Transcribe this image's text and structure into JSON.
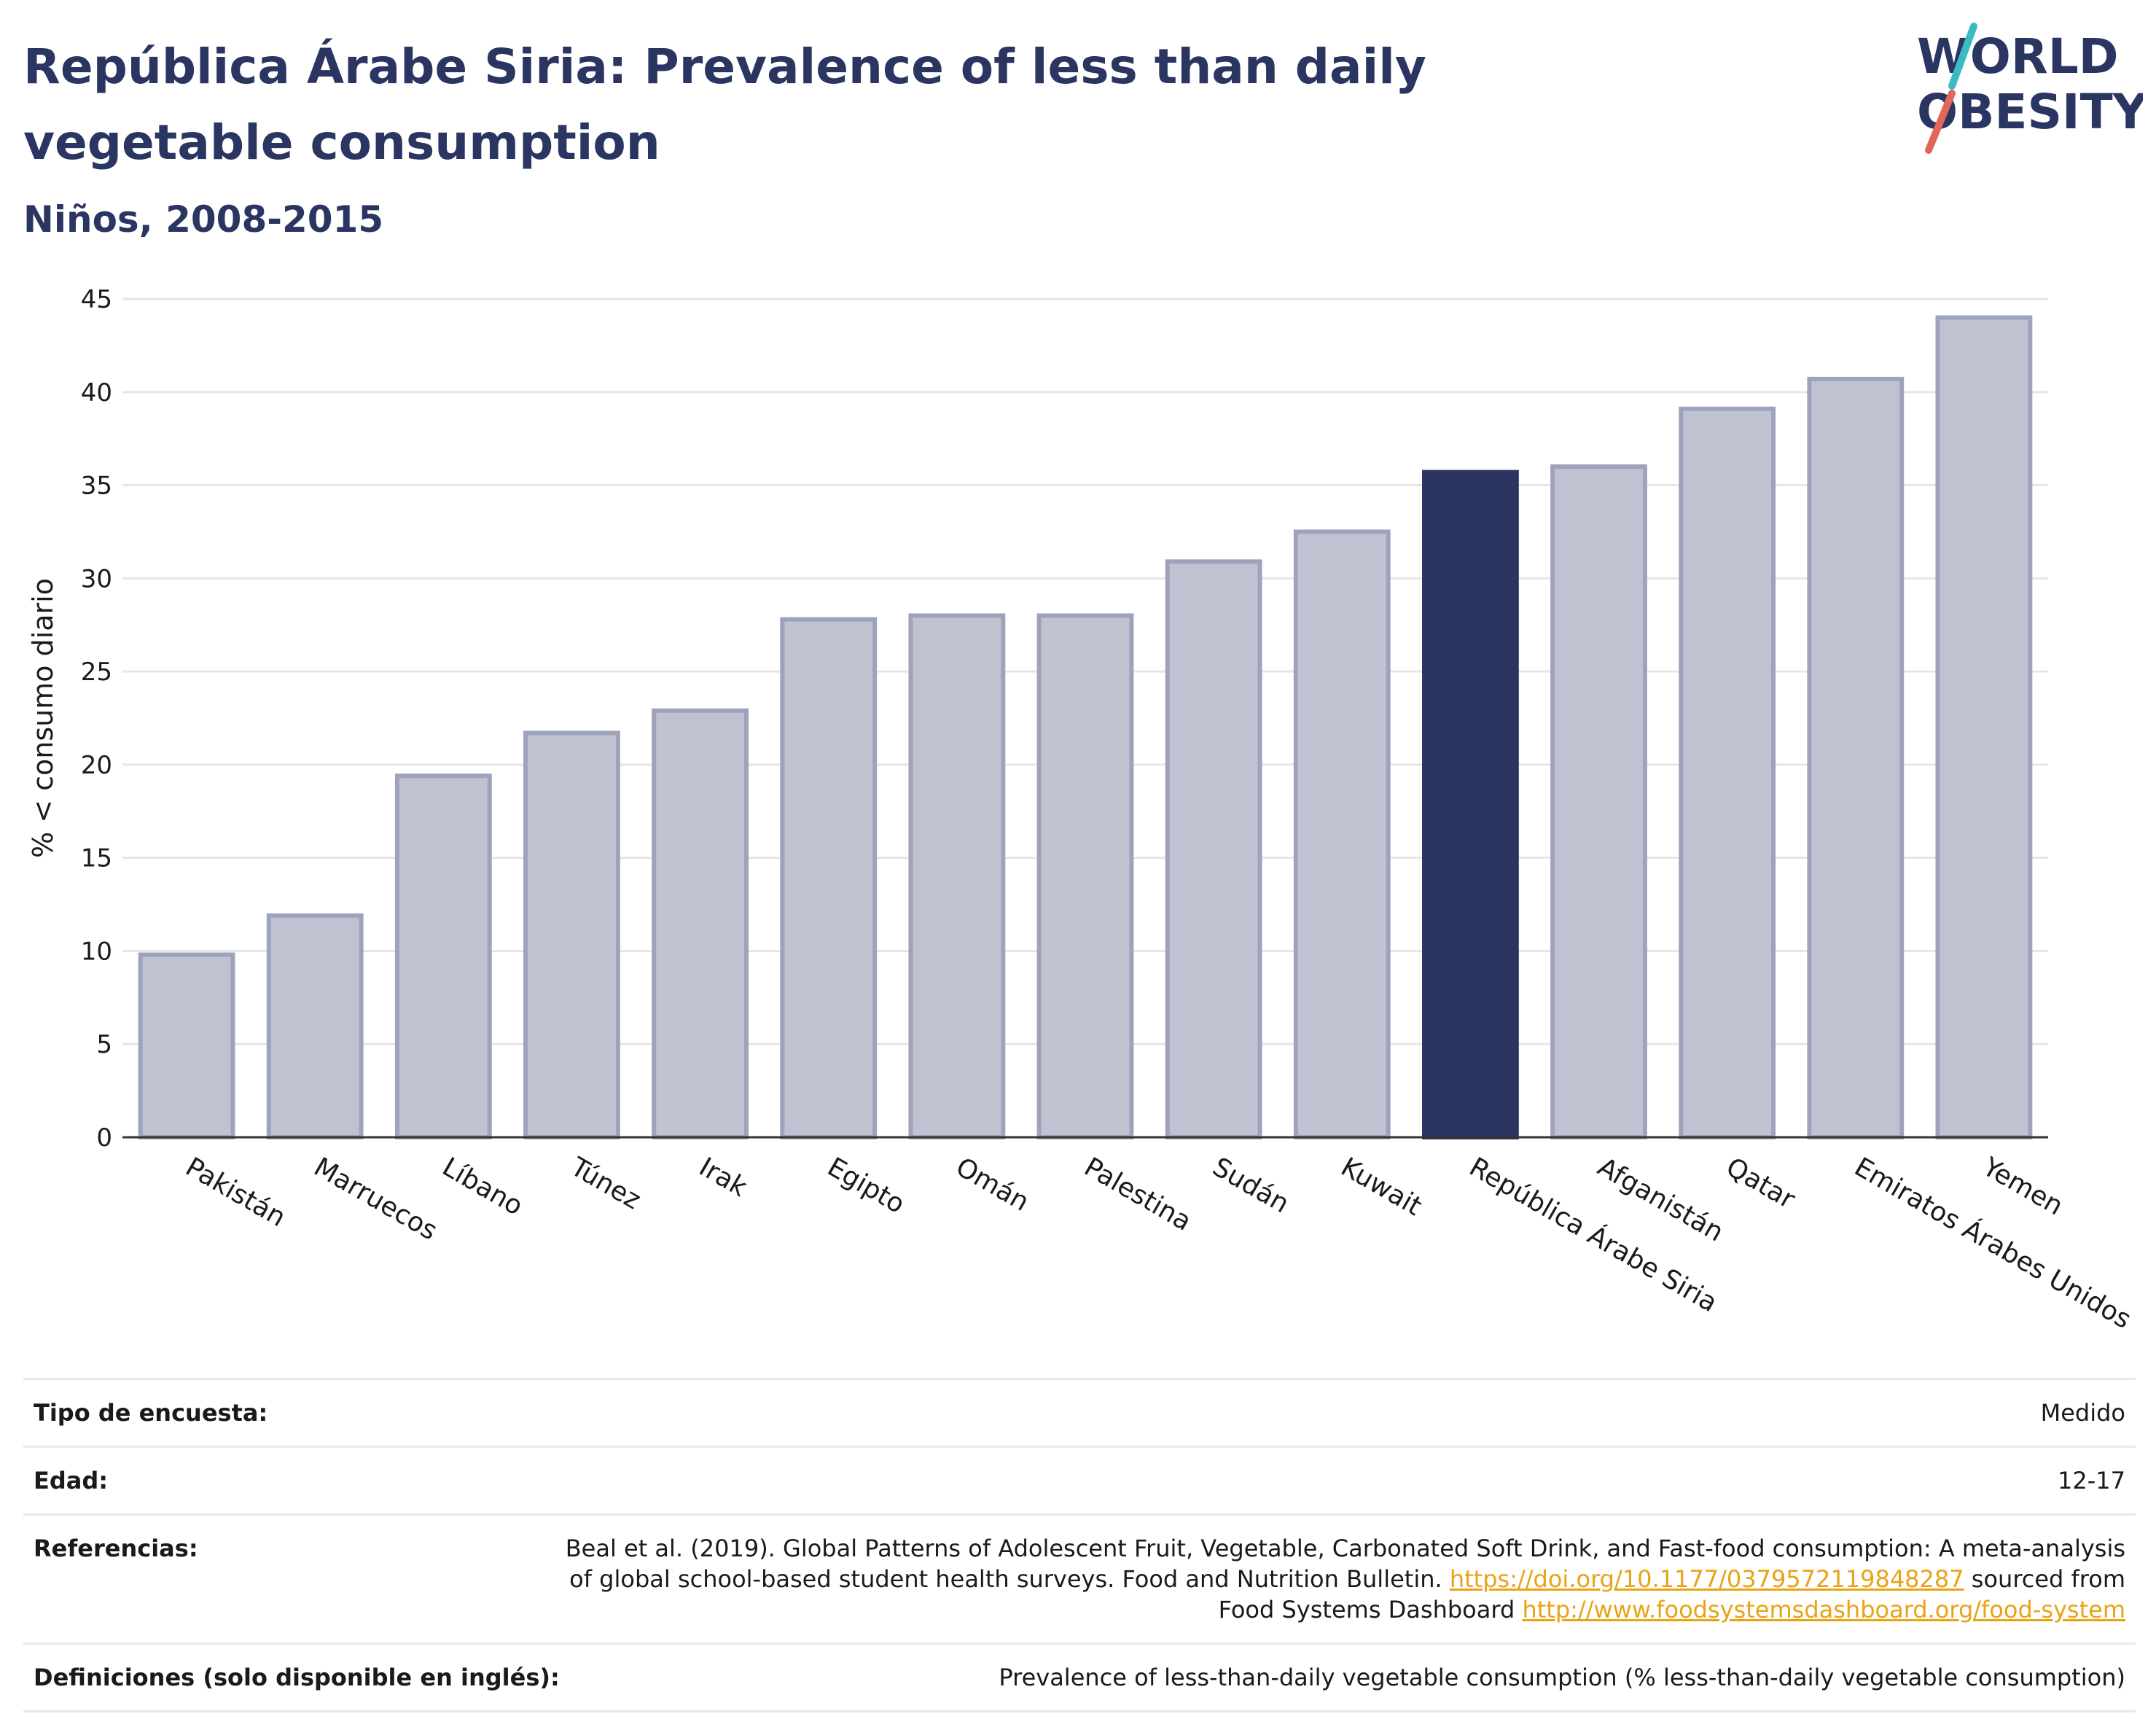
{
  "header": {
    "title": "República Árabe Siria: Prevalence of less than daily vegetable consumption",
    "subtitle": "Niños, 2008-2015"
  },
  "logo": {
    "line1": "WORLD",
    "line2": "OBESITY"
  },
  "chart_data": {
    "type": "bar",
    "title": "República Árabe Siria: Prevalence of less than daily vegetable consumption",
    "subtitle": "Niños, 2008-2015",
    "xlabel": "",
    "ylabel": "% < consumo diario",
    "ylim": [
      0,
      45
    ],
    "yticks": [
      0,
      5,
      10,
      15,
      20,
      25,
      30,
      35,
      40,
      45
    ],
    "grid": true,
    "categories": [
      "Pakistán",
      "Marruecos",
      "Líbano",
      "Túnez",
      "Irak",
      "Egipto",
      "Omán",
      "Palestina",
      "Sudán",
      "Kuwait",
      "República Árabe Siria",
      "Afganistán",
      "Qatar",
      "Emiratos Árabes Unidos",
      "Yemen"
    ],
    "values": [
      9.8,
      11.9,
      19.4,
      21.7,
      22.9,
      27.8,
      28.0,
      28.0,
      30.9,
      32.5,
      35.7,
      36.0,
      39.1,
      40.7,
      44.0
    ],
    "highlight": "República Árabe Siria",
    "colors": {
      "bar": "#bfc3d1",
      "bar_edge": "#9ea3bb",
      "highlight": "#2b3561",
      "grid": "#e6e6e6",
      "axis": "#333333"
    }
  },
  "info": {
    "survey_label": "Tipo de encuesta:",
    "survey_value": "Medido",
    "age_label": "Edad:",
    "age_value": "12-17",
    "refs_label": "Referencias:",
    "refs_text": "Beal et al. (2019). Global Patterns of Adolescent Fruit, Vegetable, Carbonated Soft Drink, and Fast-food consumption: A meta-analysis of global school-based student health surveys. Food and Nutrition Bulletin.",
    "refs_doi": "https://doi.org/10.1177/0379572119848287",
    "refs_mid": "sourced from Food Systems Dashboard",
    "refs_url": "http://www.foodsystemsdashboard.org/food-system",
    "defs_label": "Definiciones (solo disponible en inglés):",
    "defs_value": "Prevalence of less-than-daily vegetable consumption (% less-than-daily vegetable consumption)"
  }
}
